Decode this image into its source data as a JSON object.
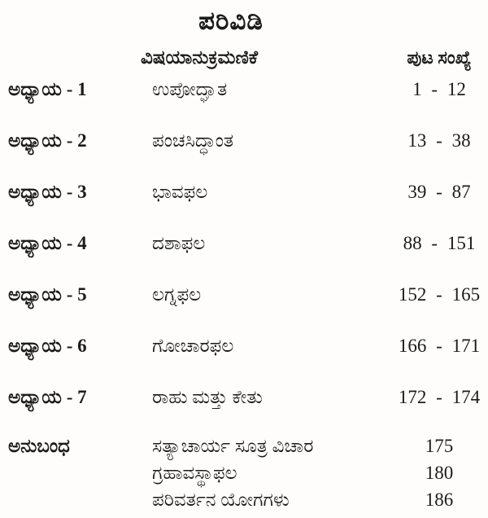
{
  "page": {
    "title": "ಪರಿವಿಡಿ"
  },
  "header": {
    "subject_column": "ವಿಷಯಾನುಕ್ರಮಣಿಕೆ",
    "page_column": "ಪುಟ ಸಂಖ್ಯೆ"
  },
  "toc": {
    "rows": [
      {
        "chapter": "ಅಧ್ಯಾಯ - 1",
        "title": "ಉಪೋದ್ಘಾತ",
        "pages": "1 - 12"
      },
      {
        "chapter": "ಅಧ್ಯಾಯ - 2",
        "title": "ಪಂಚಸಿದ್ಧಾಂತ",
        "pages": "13 - 38"
      },
      {
        "chapter": "ಅಧ್ಯಾಯ - 3",
        "title": "ಭಾವಫಲ",
        "pages": "39 - 87"
      },
      {
        "chapter": "ಅಧ್ಯಾಯ - 4",
        "title": "ದಶಾಫಲ",
        "pages": "88 - 151"
      },
      {
        "chapter": "ಅಧ್ಯಾಯ - 5",
        "title": "ಲಗ್ನಫಲ",
        "pages": "152 - 165"
      },
      {
        "chapter": "ಅಧ್ಯಾಯ - 6",
        "title": "ಗೋಚಾರಫಲ",
        "pages": "166 - 171"
      },
      {
        "chapter": "ಅಧ್ಯಾಯ - 7",
        "title": "ರಾಹು ಮತ್ತು ಕೇತು",
        "pages": "172 - 174"
      }
    ]
  },
  "appendix": {
    "label": "ಅನುಬಂಧ",
    "items": [
      {
        "title": "ಸತ್ಯಾಚಾರ್ಯ ಸೂತ್ರ ವಿಚಾರ",
        "page": "175"
      },
      {
        "title": "ಗ್ರಹಾವಸ್ಥಾಫಲ",
        "page": "180"
      },
      {
        "title": "ಪರಿವರ್ತನ ಯೋಗಗಳು",
        "page": "186"
      }
    ]
  },
  "colors": {
    "background": "#fefdfb",
    "text": "#1b1b1b"
  }
}
